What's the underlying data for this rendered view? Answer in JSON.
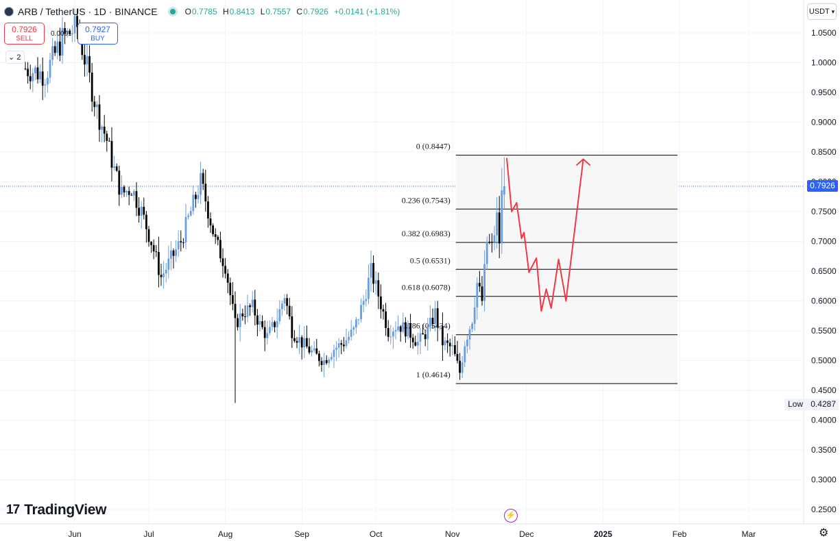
{
  "header": {
    "symbol": "ARB / TetherUS · 1D · BINANCE",
    "open_label": "O",
    "open": "0.7785",
    "high_label": "H",
    "high": "0.8413",
    "low_label": "L",
    "low": "0.7557",
    "close_label": "C",
    "close": "0.7926",
    "change": "+0.0141 (+1.81%)"
  },
  "trade": {
    "sell_price": "0.7926",
    "sell_label": "SELL",
    "buy_price": "0.7927",
    "buy_label": "BUY",
    "spread": "0.0001",
    "indicators_count": "2"
  },
  "currency_button": "USDT",
  "last_price": "0.7926",
  "low_marker": {
    "label": "Low",
    "value": "0.4287"
  },
  "brand": "TradingView",
  "colors": {
    "up": "#6a9ee0",
    "down": "#000000",
    "forecast": "#f23645",
    "last_price": "#2962ff",
    "status": "#26a69a"
  },
  "icons": [
    "symbol-logo-icon",
    "chevron-down-icon",
    "bolt-icon",
    "settings-icon"
  ],
  "chart_data": {
    "type": "candlestick",
    "yticks": [
      "1.0500",
      "1.0000",
      "0.9500",
      "0.9000",
      "0.8500",
      "0.8000",
      "0.7500",
      "0.7000",
      "0.6500",
      "0.6000",
      "0.5500",
      "0.5000",
      "0.4500",
      "0.4000",
      "0.3500",
      "0.3000",
      "0.2500"
    ],
    "xticks": [
      {
        "label": "Jun",
        "date": "2024-06-01"
      },
      {
        "label": "Jul",
        "date": "2024-07-01"
      },
      {
        "label": "Aug",
        "date": "2024-08-01"
      },
      {
        "label": "Sep",
        "date": "2024-09-01"
      },
      {
        "label": "Oct",
        "date": "2024-10-01"
      },
      {
        "label": "Nov",
        "date": "2024-11-01"
      },
      {
        "label": "Dec",
        "date": "2024-12-01"
      },
      {
        "label": "2025",
        "date": "2025-01-01"
      },
      {
        "label": "Feb",
        "date": "2025-02-01"
      },
      {
        "label": "Mar",
        "date": "2025-03-01"
      }
    ],
    "close_anchors": [
      [
        "2024-05-12",
        0.99
      ],
      [
        "2024-05-20",
        0.98
      ],
      [
        "2024-05-27",
        1.04
      ],
      [
        "2024-06-02",
        1.06
      ],
      [
        "2024-06-06",
        0.99
      ],
      [
        "2024-06-10",
        0.92
      ],
      [
        "2024-06-14",
        0.87
      ],
      [
        "2024-06-17",
        0.82
      ],
      [
        "2024-06-20",
        0.78
      ],
      [
        "2024-06-24",
        0.79
      ],
      [
        "2024-06-28",
        0.75
      ],
      [
        "2024-07-02",
        0.7
      ],
      [
        "2024-07-06",
        0.64
      ],
      [
        "2024-07-10",
        0.67
      ],
      [
        "2024-07-14",
        0.7
      ],
      [
        "2024-07-18",
        0.75
      ],
      [
        "2024-07-22",
        0.8
      ],
      [
        "2024-07-24",
        0.77
      ],
      [
        "2024-07-28",
        0.7
      ],
      [
        "2024-08-01",
        0.66
      ],
      [
        "2024-08-05",
        0.56
      ],
      [
        "2024-08-08",
        0.58
      ],
      [
        "2024-08-12",
        0.59
      ],
      [
        "2024-08-15",
        0.56
      ],
      [
        "2024-08-18",
        0.54
      ],
      [
        "2024-08-22",
        0.57
      ],
      [
        "2024-08-25",
        0.61
      ],
      [
        "2024-08-28",
        0.55
      ],
      [
        "2024-09-01",
        0.53
      ],
      [
        "2024-09-06",
        0.51
      ],
      [
        "2024-09-10",
        0.5
      ],
      [
        "2024-09-14",
        0.52
      ],
      [
        "2024-09-18",
        0.53
      ],
      [
        "2024-09-22",
        0.55
      ],
      [
        "2024-09-26",
        0.6
      ],
      [
        "2024-09-29",
        0.65
      ],
      [
        "2024-10-02",
        0.61
      ],
      [
        "2024-10-06",
        0.55
      ],
      [
        "2024-10-10",
        0.56
      ],
      [
        "2024-10-14",
        0.55
      ],
      [
        "2024-10-18",
        0.53
      ],
      [
        "2024-10-22",
        0.55
      ],
      [
        "2024-10-25",
        0.58
      ],
      [
        "2024-10-28",
        0.53
      ],
      [
        "2024-11-01",
        0.52
      ],
      [
        "2024-11-04",
        0.48
      ],
      [
        "2024-11-06",
        0.53
      ],
      [
        "2024-11-09",
        0.57
      ],
      [
        "2024-11-11",
        0.63
      ],
      [
        "2024-11-13",
        0.6
      ],
      [
        "2024-11-15",
        0.7
      ],
      [
        "2024-11-17",
        0.69
      ],
      [
        "2024-11-19",
        0.74
      ],
      [
        "2024-11-20",
        0.7
      ],
      [
        "2024-11-21",
        0.7785
      ],
      [
        "2024-11-22",
        0.7926
      ]
    ],
    "last_candle": {
      "date": "2024-11-22",
      "open": 0.7785,
      "high": 0.8413,
      "low": 0.7557,
      "close": 0.7926
    },
    "period_low": 0.4287,
    "fibonacci": [
      {
        "level": "0",
        "price": 0.8447,
        "label": "0 (0.8447)"
      },
      {
        "level": "0.236",
        "price": 0.7543,
        "label": "0.236 (0.7543)"
      },
      {
        "level": "0.382",
        "price": 0.6983,
        "label": "0.382 (0.6983)"
      },
      {
        "level": "0.5",
        "price": 0.6531,
        "label": "0.5 (0.6531)"
      },
      {
        "level": "0.618",
        "price": 0.6078,
        "label": "0.618 (0.6078)"
      },
      {
        "level": "0.786",
        "price": 0.5434,
        "label": "0.786 (0.5434)"
      },
      {
        "level": "1",
        "price": 0.4614,
        "label": "1 (0.4614)"
      }
    ],
    "fib_range": {
      "start": "2024-11-01",
      "end": "2025-02-01"
    },
    "forecast_path": [
      [
        "2024-11-23",
        0.84
      ],
      [
        "2024-11-25",
        0.75
      ],
      [
        "2024-11-27",
        0.765
      ],
      [
        "2024-11-29",
        0.705
      ],
      [
        "2024-11-30",
        0.715
      ],
      [
        "2024-12-02",
        0.648
      ],
      [
        "2024-12-05",
        0.672
      ],
      [
        "2024-12-07",
        0.583
      ],
      [
        "2024-12-09",
        0.62
      ],
      [
        "2024-12-11",
        0.588
      ],
      [
        "2024-12-14",
        0.67
      ],
      [
        "2024-12-17",
        0.6
      ],
      [
        "2024-12-24",
        0.838
      ]
    ]
  }
}
